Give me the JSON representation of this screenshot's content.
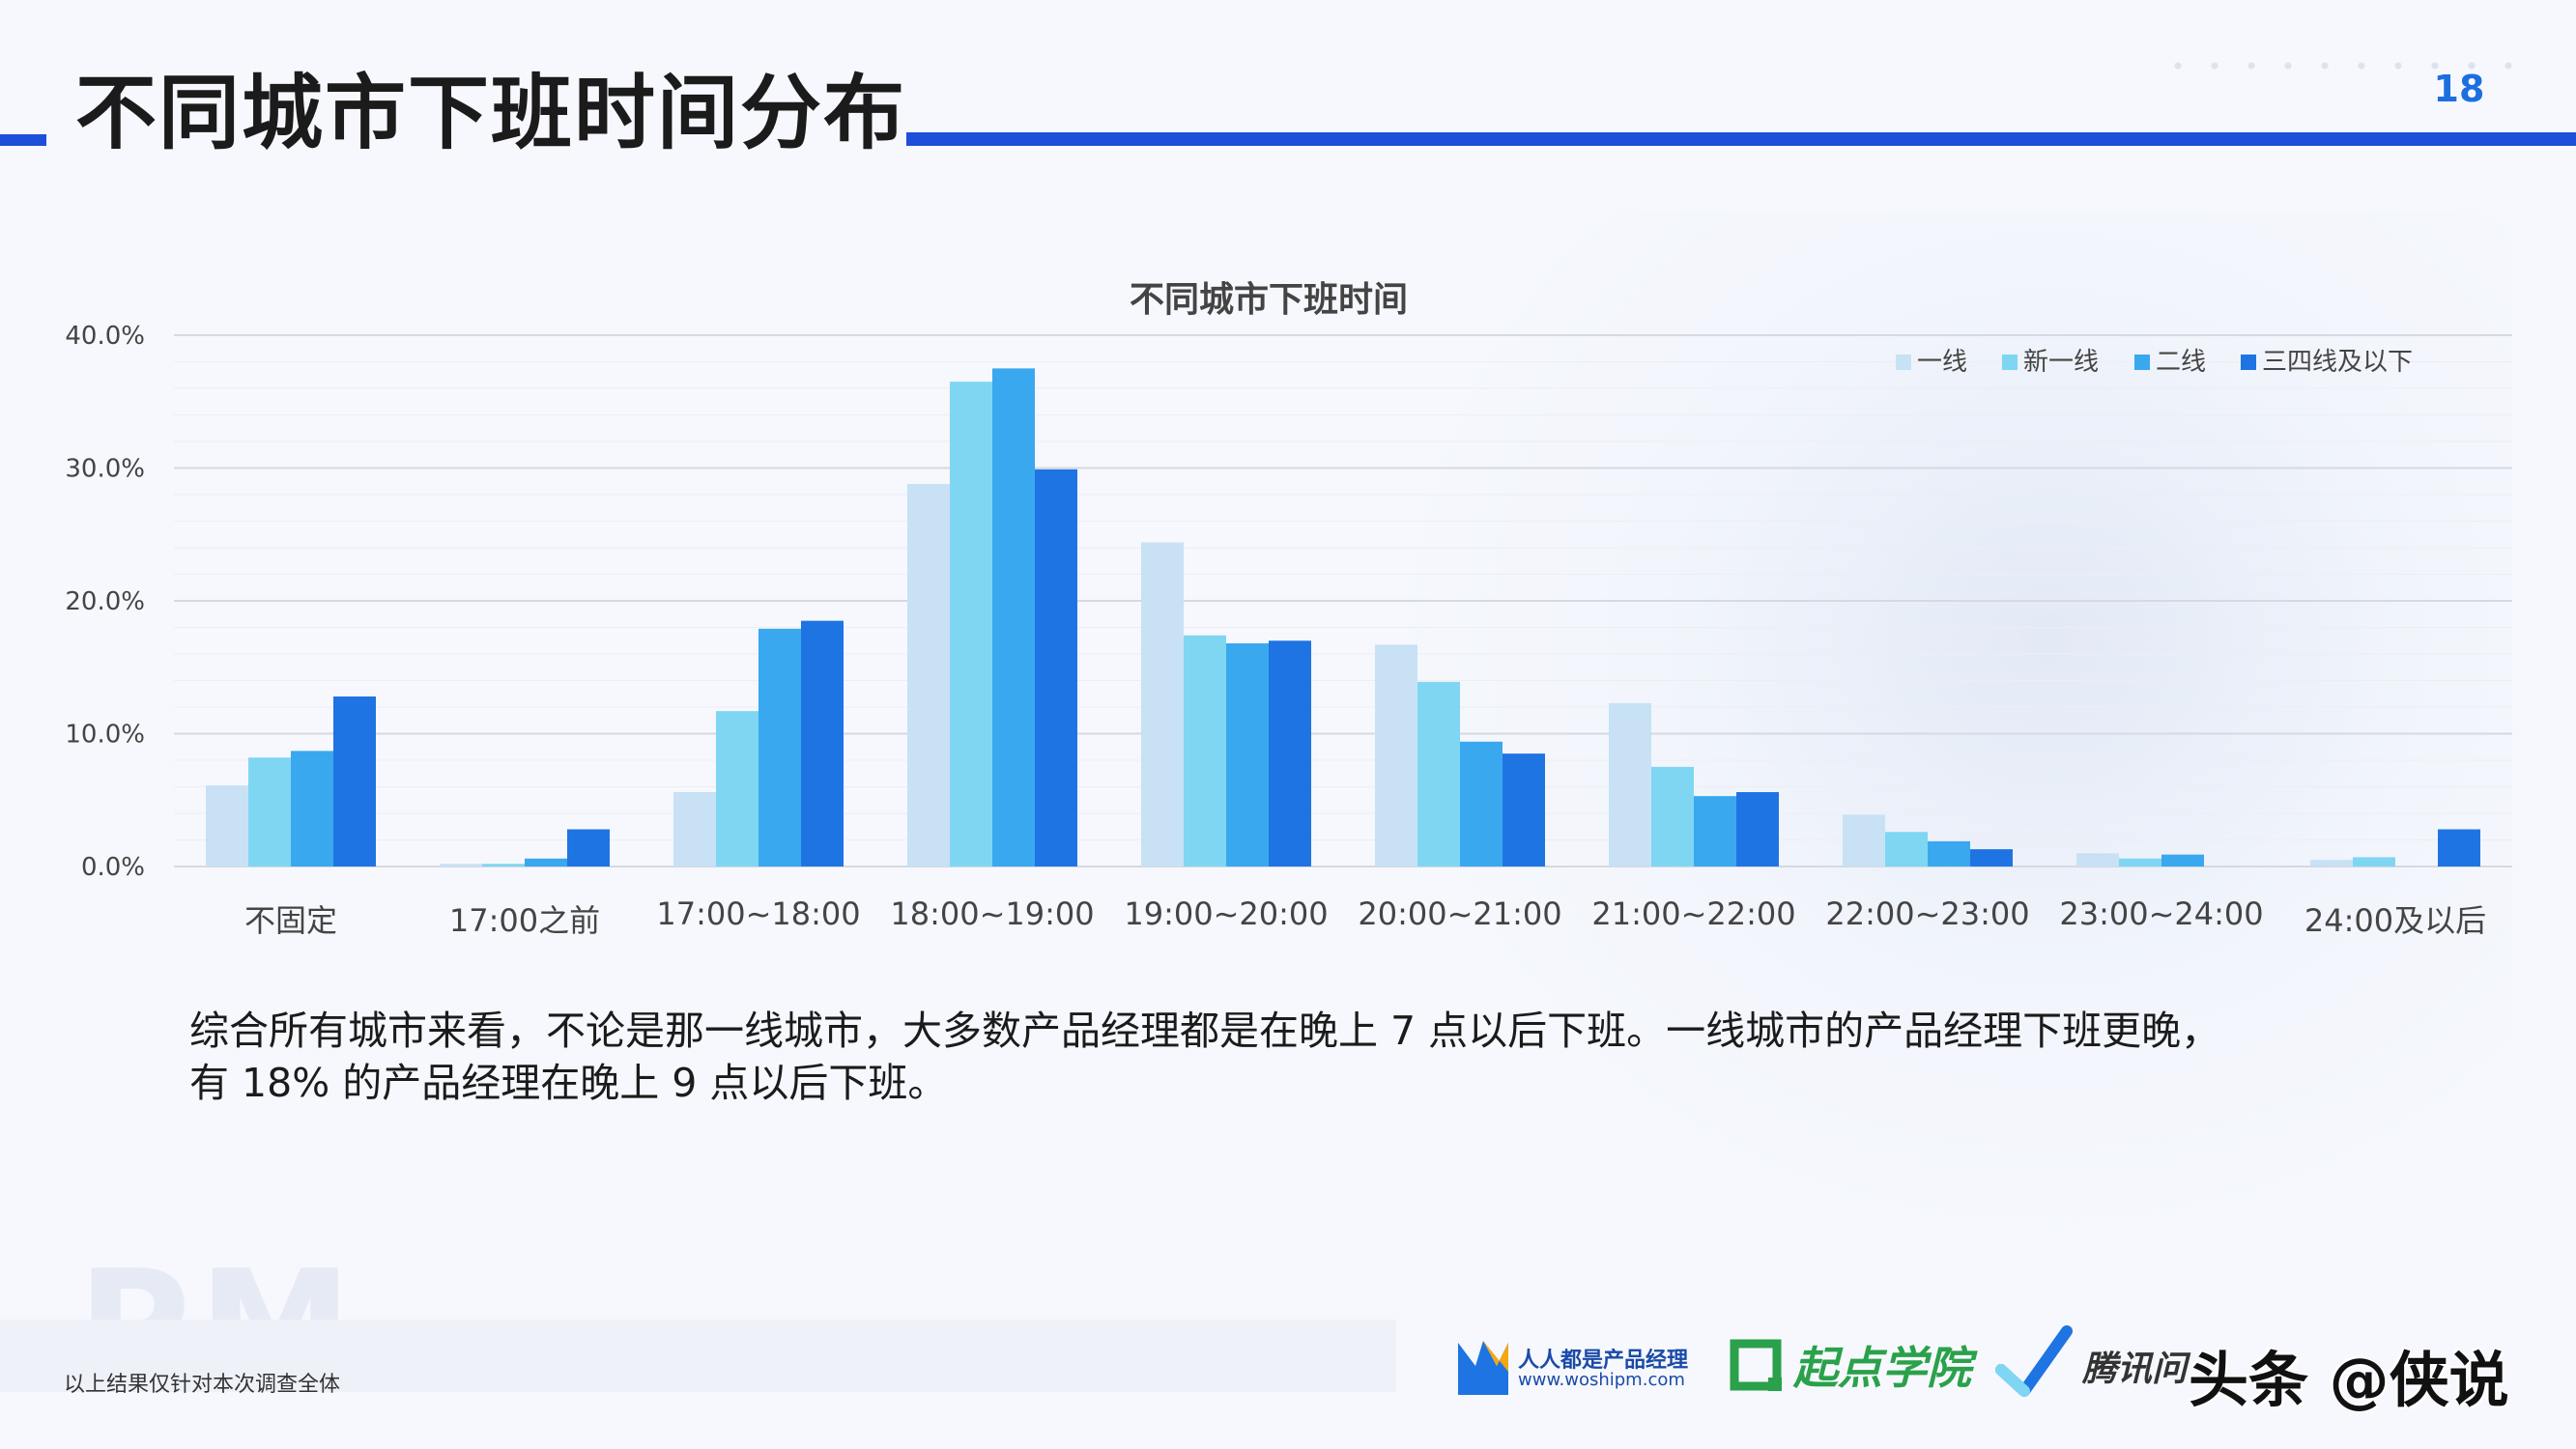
{
  "page": {
    "title": "不同城市下班时间分布",
    "number": "18"
  },
  "chart_data": {
    "type": "bar",
    "title": "不同城市下班时间",
    "categories": [
      "不固定",
      "17:00之前",
      "17:00~18:00",
      "18:00~19:00",
      "19:00~20:00",
      "20:00~21:00",
      "21:00~22:00",
      "22:00~23:00",
      "23:00~24:00",
      "24:00及以后"
    ],
    "series": [
      {
        "name": "一线",
        "color": "#c8e1f5",
        "values": [
          6.1,
          0.2,
          5.6,
          28.8,
          24.4,
          16.7,
          12.3,
          3.9,
          1.0,
          0.5
        ]
      },
      {
        "name": "新一线",
        "color": "#7fd6f3",
        "values": [
          8.2,
          0.2,
          11.7,
          36.5,
          17.4,
          13.9,
          7.5,
          2.6,
          0.6,
          0.7
        ]
      },
      {
        "name": "二线",
        "color": "#3aa8ee",
        "values": [
          8.7,
          0.6,
          17.9,
          37.5,
          16.8,
          9.4,
          5.3,
          1.9,
          0.9,
          0.0
        ]
      },
      {
        "name": "三四线及以下",
        "color": "#1f74e3",
        "values": [
          12.8,
          2.8,
          18.5,
          29.9,
          17.0,
          8.5,
          5.6,
          1.3,
          0.0,
          2.8
        ]
      }
    ],
    "y_ticks": [
      "0.0%",
      "10.0%",
      "20.0%",
      "30.0%",
      "40.0%"
    ],
    "ylim": [
      0,
      40
    ],
    "grid": true,
    "legend_position": "top-right"
  },
  "conclusion": {
    "line1": "综合所有城市来看，不论是那一线城市，大多数产品经理都是在晚上 7 点以后下班。一线城市的产品经理下班更晚，",
    "line2": "有 18% 的产品经理在晚上 9 点以后下班。"
  },
  "footnote": "以上结果仅针对本次调查全体",
  "watermark": "PM",
  "logos": {
    "woshipm_name": "人人都是产品经理",
    "woshipm_url": "www.woshipm.com",
    "qidian": "起点学院",
    "tencent": "腾讯问",
    "toutiao": "头条 @侠说"
  }
}
